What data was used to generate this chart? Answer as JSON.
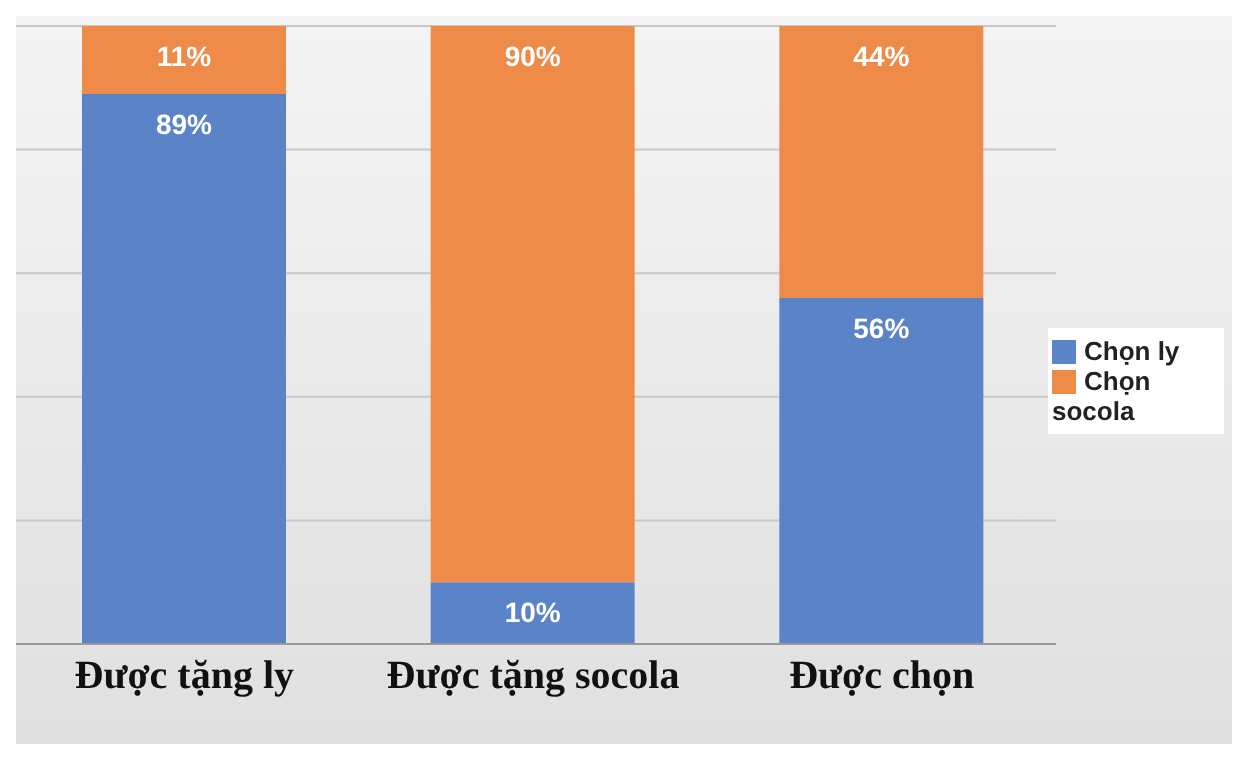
{
  "chart_data": {
    "type": "bar",
    "stacked": true,
    "categories": [
      "Được tặng ly",
      "Được tặng socola",
      "Được chọn"
    ],
    "series": [
      {
        "name": "Chọn ly",
        "color": "#5b84c8",
        "values": [
          89,
          10,
          56
        ],
        "value_labels": [
          "89%",
          "10%",
          "56%"
        ]
      },
      {
        "name": "Chọn socola",
        "color": "#ee8b48",
        "values": [
          11,
          90,
          44
        ],
        "value_labels": [
          "11%",
          "90%",
          "44%"
        ]
      }
    ],
    "ylim": [
      0,
      100
    ],
    "yticks": [
      0,
      20,
      40,
      60,
      80,
      100
    ],
    "grid": "y",
    "tick_labels": "x",
    "legend": "right"
  }
}
